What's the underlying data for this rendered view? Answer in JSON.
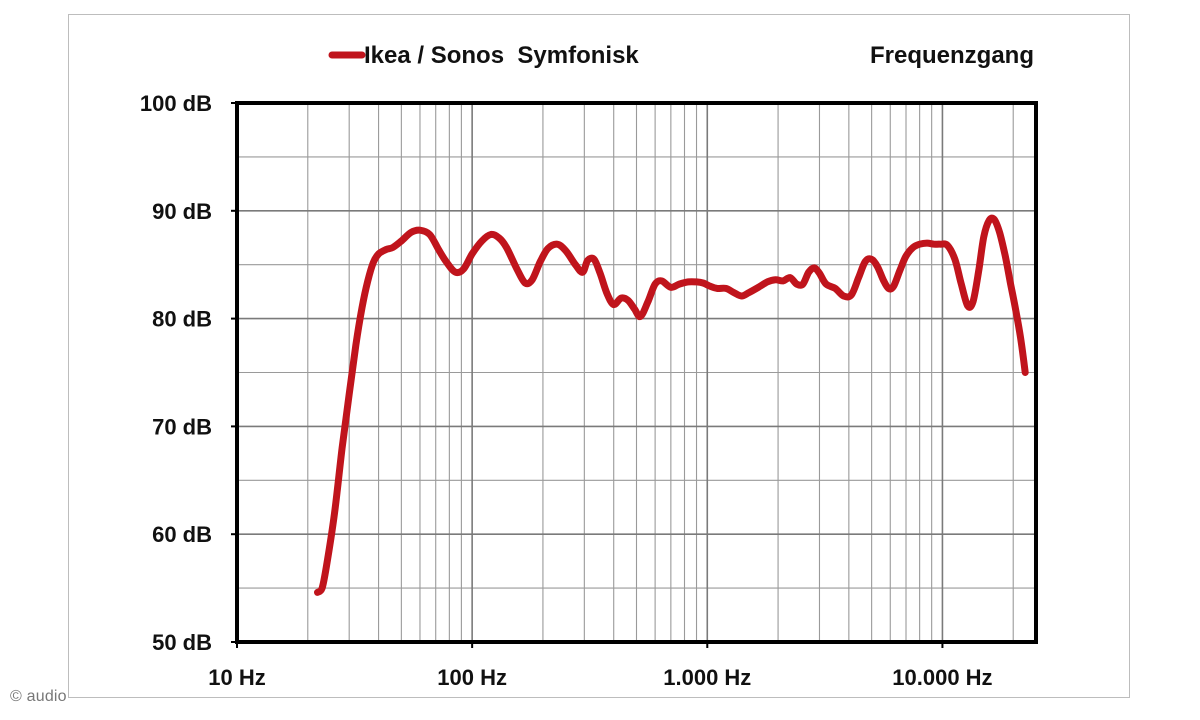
{
  "copyright": "© audio",
  "chart_data": {
    "type": "line",
    "title": "Frequenzgang",
    "x_scale": "log",
    "xlim": [
      10,
      25000
    ],
    "ylim": [
      50,
      100
    ],
    "y_ticks": [
      {
        "value": 100,
        "label": "100 dB"
      },
      {
        "value": 90,
        "label": "90 dB"
      },
      {
        "value": 80,
        "label": "80 dB"
      },
      {
        "value": 70,
        "label": "70 dB"
      },
      {
        "value": 60,
        "label": "60 dB"
      },
      {
        "value": 50,
        "label": "50 dB"
      }
    ],
    "x_ticks": [
      {
        "value": 10,
        "label": "10 Hz"
      },
      {
        "value": 100,
        "label": "100 Hz"
      },
      {
        "value": 1000,
        "label": "1.000 Hz"
      },
      {
        "value": 10000,
        "label": "10.000 Hz"
      }
    ],
    "grid": true,
    "legend": "top-left",
    "series": [
      {
        "name": "Ikea / Sonos  Symfonisk",
        "color": "#c0141c",
        "points": [
          [
            22,
            54.6
          ],
          [
            23,
            55.0
          ],
          [
            24,
            57.0
          ],
          [
            26,
            62.0
          ],
          [
            28,
            68.0
          ],
          [
            30,
            73.0
          ],
          [
            32,
            77.5
          ],
          [
            34,
            81.0
          ],
          [
            36,
            83.5
          ],
          [
            38,
            85.2
          ],
          [
            40,
            86.0
          ],
          [
            43,
            86.4
          ],
          [
            46,
            86.6
          ],
          [
            50,
            87.2
          ],
          [
            55,
            88.0
          ],
          [
            60,
            88.2
          ],
          [
            66,
            87.8
          ],
          [
            72,
            86.4
          ],
          [
            78,
            85.2
          ],
          [
            85,
            84.3
          ],
          [
            92,
            84.6
          ],
          [
            100,
            86.0
          ],
          [
            110,
            87.2
          ],
          [
            120,
            87.8
          ],
          [
            130,
            87.5
          ],
          [
            140,
            86.6
          ],
          [
            155,
            84.6
          ],
          [
            168,
            83.3
          ],
          [
            180,
            83.6
          ],
          [
            195,
            85.3
          ],
          [
            210,
            86.5
          ],
          [
            230,
            86.9
          ],
          [
            250,
            86.3
          ],
          [
            275,
            85.0
          ],
          [
            295,
            84.3
          ],
          [
            310,
            85.4
          ],
          [
            330,
            85.5
          ],
          [
            350,
            84.2
          ],
          [
            375,
            82.3
          ],
          [
            400,
            81.3
          ],
          [
            430,
            81.9
          ],
          [
            460,
            81.7
          ],
          [
            490,
            80.9
          ],
          [
            520,
            80.2
          ],
          [
            560,
            81.6
          ],
          [
            600,
            83.2
          ],
          [
            640,
            83.5
          ],
          [
            700,
            82.9
          ],
          [
            760,
            83.2
          ],
          [
            830,
            83.4
          ],
          [
            900,
            83.4
          ],
          [
            960,
            83.3
          ],
          [
            1030,
            83.0
          ],
          [
            1100,
            82.8
          ],
          [
            1200,
            82.8
          ],
          [
            1300,
            82.4
          ],
          [
            1400,
            82.1
          ],
          [
            1500,
            82.4
          ],
          [
            1650,
            82.9
          ],
          [
            1800,
            83.4
          ],
          [
            1950,
            83.6
          ],
          [
            2100,
            83.5
          ],
          [
            2250,
            83.8
          ],
          [
            2400,
            83.2
          ],
          [
            2550,
            83.2
          ],
          [
            2700,
            84.3
          ],
          [
            2850,
            84.7
          ],
          [
            3000,
            84.2
          ],
          [
            3200,
            83.2
          ],
          [
            3500,
            82.8
          ],
          [
            3800,
            82.1
          ],
          [
            4100,
            82.2
          ],
          [
            4400,
            83.8
          ],
          [
            4700,
            85.3
          ],
          [
            5000,
            85.5
          ],
          [
            5300,
            84.8
          ],
          [
            5600,
            83.6
          ],
          [
            5900,
            82.8
          ],
          [
            6200,
            83.0
          ],
          [
            6600,
            84.5
          ],
          [
            7000,
            85.8
          ],
          [
            7500,
            86.6
          ],
          [
            8000,
            86.9
          ],
          [
            8600,
            87.0
          ],
          [
            9200,
            86.9
          ],
          [
            9800,
            86.9
          ],
          [
            10500,
            86.8
          ],
          [
            11300,
            85.5
          ],
          [
            12000,
            83.3
          ],
          [
            12800,
            81.2
          ],
          [
            13500,
            81.6
          ],
          [
            14300,
            84.6
          ],
          [
            15000,
            87.6
          ],
          [
            15800,
            89.1
          ],
          [
            16600,
            89.2
          ],
          [
            17500,
            88.0
          ],
          [
            18500,
            85.8
          ],
          [
            19500,
            83.2
          ],
          [
            20500,
            80.8
          ],
          [
            21500,
            78.2
          ],
          [
            22500,
            75.0
          ]
        ]
      }
    ]
  }
}
